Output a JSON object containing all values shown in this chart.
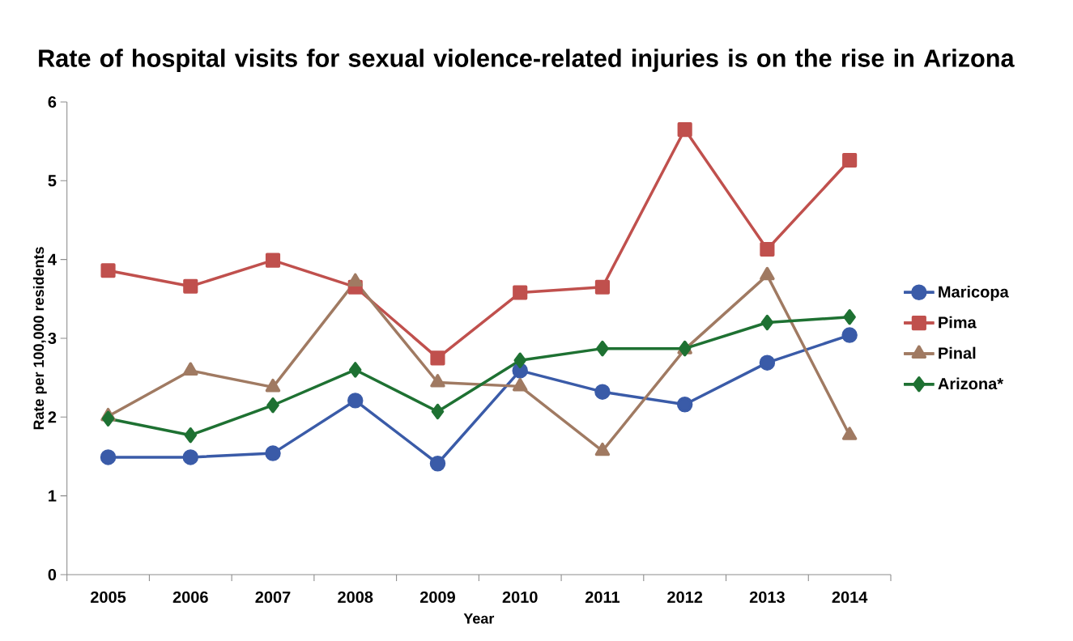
{
  "chart_data": {
    "type": "line",
    "title": "Rate of hospital visits for sexual violence-related injuries is on the rise in Arizona",
    "xlabel": "Year",
    "ylabel": "Rate per 100,000 residents",
    "categories": [
      "2005",
      "2006",
      "2007",
      "2008",
      "2009",
      "2010",
      "2011",
      "2012",
      "2013",
      "2014"
    ],
    "series": [
      {
        "name": "Maricopa",
        "color": "#3a5ba8",
        "marker": "circle",
        "values": [
          1.49,
          1.49,
          1.54,
          2.21,
          1.41,
          2.59,
          2.32,
          2.16,
          2.69,
          3.04
        ]
      },
      {
        "name": "Pima",
        "color": "#c0504d",
        "marker": "square",
        "values": [
          3.86,
          3.66,
          3.99,
          3.65,
          2.75,
          3.58,
          3.65,
          5.65,
          4.13,
          5.26
        ]
      },
      {
        "name": "Pinal",
        "color": "#a07a62",
        "marker": "triangle",
        "values": [
          2.01,
          2.59,
          2.38,
          3.72,
          2.44,
          2.39,
          1.57,
          2.86,
          3.8,
          1.77
        ]
      },
      {
        "name": "Arizona*",
        "color": "#1e7132",
        "marker": "diamond",
        "values": [
          1.98,
          1.77,
          2.15,
          2.6,
          2.07,
          2.72,
          2.87,
          2.87,
          3.2,
          3.27
        ]
      }
    ],
    "ylim": [
      0,
      6
    ],
    "yticks": [
      0,
      1,
      2,
      3,
      4,
      5,
      6
    ],
    "grid": false,
    "legend": "right",
    "line_style": "solid"
  }
}
